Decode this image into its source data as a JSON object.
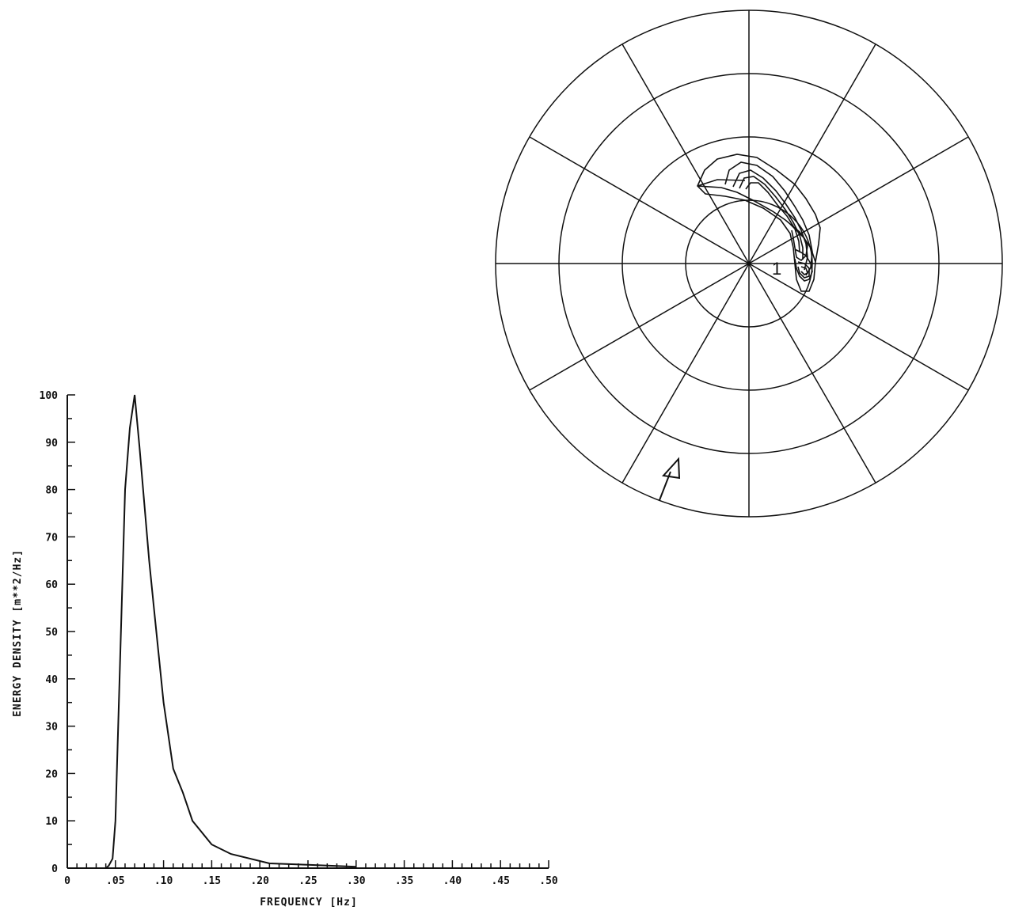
{
  "chart_data": [
    {
      "type": "line",
      "title": "",
      "xlabel": "FREQUENCY [Hz]",
      "ylabel": "ENERGY DENSITY [m**2/Hz]",
      "xlim": [
        0,
        0.5
      ],
      "ylim": [
        0,
        100
      ],
      "x_tick_labels": [
        "0",
        ".05",
        ".10",
        ".15",
        ".20",
        ".25",
        ".30",
        ".35",
        ".40",
        ".45",
        ".50"
      ],
      "y_tick_labels": [
        "0",
        "10",
        "20",
        "30",
        "40",
        "50",
        "60",
        "70",
        "80",
        "90",
        "100"
      ],
      "grid": false,
      "series": [
        {
          "x": [
            0.04,
            0.043,
            0.047,
            0.05,
            0.055,
            0.06,
            0.065,
            0.07,
            0.075,
            0.08,
            0.085,
            0.09,
            0.095,
            0.1,
            0.11,
            0.12,
            0.13,
            0.15,
            0.17,
            0.21,
            0.25,
            0.3
          ],
          "y": [
            0,
            0.5,
            2,
            10,
            45,
            80,
            93,
            100,
            89,
            77,
            65,
            55,
            45,
            35,
            21,
            16,
            10,
            5,
            3,
            1,
            0.7,
            0.3
          ]
        }
      ]
    },
    {
      "type": "polar-contour",
      "title": "",
      "rings": 4,
      "spokes": 12,
      "annotations": [
        "1"
      ],
      "arrow": "direction marker",
      "contours": [
        [
          [
            -5,
            105
          ],
          [
            -40,
            106
          ],
          [
            -65,
            98
          ],
          [
            -35,
            96
          ],
          [
            -15,
            90
          ],
          [
            5,
            80
          ],
          [
            30,
            66
          ],
          [
            46,
            55
          ],
          [
            64,
            40
          ],
          [
            78,
            20
          ],
          [
            84,
            2
          ],
          [
            82,
            -20
          ],
          [
            76,
            -35
          ],
          [
            66,
            -35
          ],
          [
            60,
            -20
          ],
          [
            58,
            0
          ],
          [
            56,
            20
          ],
          [
            52,
            38
          ],
          [
            40,
            55
          ],
          [
            18,
            70
          ],
          [
            -5,
            80
          ],
          [
            -30,
            85
          ],
          [
            -55,
            88
          ],
          [
            -65,
            98
          ],
          [
            -56,
            118
          ],
          [
            -40,
            132
          ],
          [
            -15,
            138
          ],
          [
            10,
            134
          ],
          [
            35,
            118
          ],
          [
            58,
            100
          ],
          [
            72,
            82
          ],
          [
            84,
            62
          ],
          [
            90,
            45
          ],
          [
            88,
            25
          ],
          [
            84,
            2
          ]
        ],
        [
          [
            -30,
            100
          ],
          [
            -25,
            118
          ],
          [
            -10,
            128
          ],
          [
            10,
            124
          ],
          [
            30,
            110
          ],
          [
            45,
            92
          ],
          [
            58,
            72
          ],
          [
            68,
            55
          ],
          [
            76,
            36
          ],
          [
            80,
            15
          ],
          [
            78,
            -5
          ],
          [
            72,
            -15
          ]
        ],
        [
          [
            -20,
            97
          ],
          [
            -12,
            114
          ],
          [
            2,
            118
          ],
          [
            18,
            108
          ],
          [
            34,
            92
          ],
          [
            46,
            76
          ],
          [
            58,
            58
          ],
          [
            66,
            42
          ],
          [
            72,
            25
          ],
          [
            74,
            8
          ],
          [
            70,
            -8
          ]
        ],
        [
          [
            -12,
            95
          ],
          [
            -6,
            108
          ],
          [
            6,
            110
          ],
          [
            20,
            100
          ],
          [
            34,
            84
          ],
          [
            46,
            68
          ],
          [
            56,
            52
          ],
          [
            64,
            36
          ],
          [
            68,
            20
          ],
          [
            68,
            5
          ]
        ],
        [
          [
            -4,
            94
          ],
          [
            2,
            102
          ],
          [
            12,
            102
          ],
          [
            24,
            90
          ],
          [
            36,
            74
          ],
          [
            48,
            60
          ],
          [
            58,
            44
          ],
          [
            63,
            28
          ],
          [
            64,
            14
          ]
        ],
        [
          [
            52,
            50
          ],
          [
            62,
            40
          ],
          [
            70,
            32
          ],
          [
            74,
            22
          ],
          [
            72,
            10
          ],
          [
            66,
            4
          ],
          [
            60,
            8
          ],
          [
            58,
            20
          ],
          [
            56,
            32
          ],
          [
            54,
            42
          ]
        ],
        [
          [
            58,
            18
          ],
          [
            66,
            14
          ],
          [
            72,
            10
          ],
          [
            78,
            0
          ],
          [
            80,
            -10
          ],
          [
            76,
            -20
          ],
          [
            70,
            -22
          ],
          [
            64,
            -16
          ],
          [
            60,
            -6
          ],
          [
            58,
            6
          ]
        ],
        [
          [
            62,
            2
          ],
          [
            70,
            0
          ],
          [
            76,
            -6
          ],
          [
            76,
            -16
          ],
          [
            70,
            -18
          ],
          [
            64,
            -12
          ],
          [
            62,
            -4
          ]
        ],
        [
          [
            66,
            -4
          ],
          [
            72,
            -6
          ],
          [
            74,
            -12
          ],
          [
            70,
            -14
          ],
          [
            66,
            -10
          ]
        ]
      ]
    }
  ]
}
